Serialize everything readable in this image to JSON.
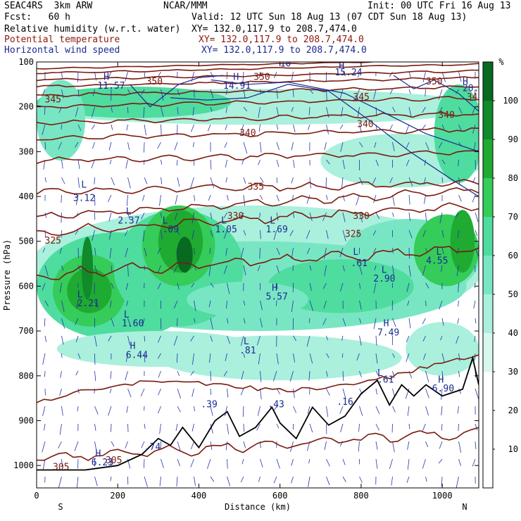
{
  "header": {
    "model": "SEAC4RS  3km ARW",
    "org": "NCAR/MMM",
    "init": "Init: 00 UTC Fri 16 Aug 13",
    "fcst": "Fcst:   60 h",
    "valid": "Valid: 12 UTC Sun 18 Aug 13 (07 CDT Sun 18 Aug 13)",
    "fields": [
      {
        "name": "Relative humidity (w.r.t. water)",
        "xy": "XY= 132.0,117.9 to 208.7,474.0",
        "color": "#000000"
      },
      {
        "name": "Potential temperature",
        "xy": "XY= 132.0,117.9 to 208.7,474.0",
        "color": "#8b1a10"
      },
      {
        "name": "Horizontal wind speed",
        "xy": "XY= 132.0,117.9 to 208.7,474.0",
        "color": "#1a2a90"
      }
    ]
  },
  "colors": {
    "theta": "#7a1a10",
    "wind": "#1a2a90",
    "vectors": "#2233aa",
    "terrain": "#000000"
  },
  "chart_data": {
    "type": "heatmap",
    "xlabel": "Distance (km)",
    "ylabel": "Pressure (hPa)",
    "xlim": [
      0,
      1090
    ],
    "ylim": [
      1050,
      100
    ],
    "x_ticks": [
      "0",
      "200",
      "400",
      "600",
      "800",
      "1000"
    ],
    "x_tick_values": [
      0,
      200,
      400,
      600,
      800,
      1000
    ],
    "y_ticks": [
      "100",
      "200",
      "300",
      "400",
      "500",
      "600",
      "700",
      "800",
      "900",
      "1000"
    ],
    "y_tick_values": [
      100,
      200,
      300,
      400,
      500,
      600,
      700,
      800,
      900,
      1000
    ],
    "endpoints": {
      "left": "S",
      "right": "N"
    },
    "colorbar": {
      "unit": "%",
      "ticks": [
        "10",
        "20",
        "30",
        "40",
        "50",
        "60",
        "70",
        "80",
        "90",
        "100"
      ],
      "levels": [
        0,
        10,
        20,
        30,
        40,
        50,
        60,
        70,
        80,
        90,
        100,
        110
      ],
      "colors": [
        "#ffffff",
        "#ffffff",
        "#ffffff",
        "#d8f7ee",
        "#aaf0dc",
        "#79e6c3",
        "#4fdc9f",
        "#35cc5a",
        "#1faa32",
        "#108a2a",
        "#076a20"
      ]
    },
    "theta_labels": [
      {
        "text": "345",
        "x": 20,
        "p": 190
      },
      {
        "text": "350",
        "x": 270,
        "p": 150
      },
      {
        "text": "350",
        "x": 535,
        "p": 140
      },
      {
        "text": "345",
        "x": 780,
        "p": 185
      },
      {
        "text": "350",
        "x": 960,
        "p": 150
      },
      {
        "text": "345",
        "x": 1060,
        "p": 185
      },
      {
        "text": "340",
        "x": 500,
        "p": 265
      },
      {
        "text": "340",
        "x": 790,
        "p": 245
      },
      {
        "text": "340",
        "x": 990,
        "p": 225
      },
      {
        "text": "335",
        "x": 520,
        "p": 385
      },
      {
        "text": "330",
        "x": 470,
        "p": 450
      },
      {
        "text": "330",
        "x": 780,
        "p": 450
      },
      {
        "text": "325",
        "x": 20,
        "p": 505
      },
      {
        "text": "325",
        "x": 760,
        "p": 490
      },
      {
        "text": "305",
        "x": 40,
        "p": 1010
      },
      {
        "text": "305",
        "x": 170,
        "p": 995
      }
    ],
    "wind_labels": [
      {
        "text": "H",
        "x": 165,
        "p": 140
      },
      {
        "text": "11.57",
        "x": 150,
        "p": 160
      },
      {
        "text": "H",
        "x": 485,
        "p": 140
      },
      {
        "text": "14.91",
        "x": 460,
        "p": 160
      },
      {
        "text": "H",
        "x": 745,
        "p": 115
      },
      {
        "text": "15.24",
        "x": 735,
        "p": 130
      },
      {
        "text": "H",
        "x": 1050,
        "p": 150
      },
      {
        "text": "20.0",
        "x": 1050,
        "p": 165
      },
      {
        "text": "10",
        "x": 600,
        "p": 110
      },
      {
        "text": "L",
        "x": 110,
        "p": 380
      },
      {
        "text": "3.12",
        "x": 90,
        "p": 410
      },
      {
        "text": "L",
        "x": 220,
        "p": 440
      },
      {
        "text": "2.37",
        "x": 200,
        "p": 460
      },
      {
        "text": "L",
        "x": 310,
        "p": 460
      },
      {
        "text": ".09",
        "x": 310,
        "p": 480
      },
      {
        "text": "L",
        "x": 455,
        "p": 460
      },
      {
        "text": "1.05",
        "x": 440,
        "p": 480
      },
      {
        "text": "L",
        "x": 575,
        "p": 460
      },
      {
        "text": "1.69",
        "x": 565,
        "p": 480
      },
      {
        "text": "L",
        "x": 780,
        "p": 530
      },
      {
        "text": ".61",
        "x": 775,
        "p": 555
      },
      {
        "text": "L",
        "x": 985,
        "p": 530
      },
      {
        "text": "4.55",
        "x": 960,
        "p": 550
      },
      {
        "text": "L",
        "x": 850,
        "p": 570
      },
      {
        "text": "2.90",
        "x": 830,
        "p": 590
      },
      {
        "text": "L",
        "x": 100,
        "p": 625
      },
      {
        "text": "2.21",
        "x": 100,
        "p": 645
      },
      {
        "text": "L",
        "x": 215,
        "p": 670
      },
      {
        "text": "1.60",
        "x": 210,
        "p": 690
      },
      {
        "text": "H",
        "x": 230,
        "p": 740
      },
      {
        "text": "6.44",
        "x": 220,
        "p": 760
      },
      {
        "text": "H",
        "x": 580,
        "p": 610
      },
      {
        "text": "5.57",
        "x": 565,
        "p": 630
      },
      {
        "text": "H",
        "x": 855,
        "p": 690
      },
      {
        "text": "7.49",
        "x": 840,
        "p": 710
      },
      {
        "text": "L",
        "x": 510,
        "p": 730
      },
      {
        "text": ".81",
        "x": 500,
        "p": 750
      },
      {
        "text": "L",
        "x": 840,
        "p": 800
      },
      {
        "text": ".61",
        "x": 840,
        "p": 815
      },
      {
        "text": "H",
        "x": 990,
        "p": 815
      },
      {
        "text": "6.90",
        "x": 975,
        "p": 835
      },
      {
        "text": ".39",
        "x": 405,
        "p": 870
      },
      {
        "text": ".43",
        "x": 570,
        "p": 870
      },
      {
        "text": ".16",
        "x": 740,
        "p": 865
      },
      {
        "text": ".74",
        "x": 265,
        "p": 965
      },
      {
        "text": "H",
        "x": 145,
        "p": 980
      },
      {
        "text": "6.23",
        "x": 135,
        "p": 1000
      }
    ]
  }
}
